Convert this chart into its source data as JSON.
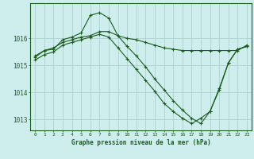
{
  "title": "Graphe pression niveau de la mer (hPa)",
  "background_color": "#ceeeed",
  "grid_color": "#b0cece",
  "line_color": "#1a5c1a",
  "marker_color": "#1a5c1a",
  "xlim": [
    -0.5,
    23.5
  ],
  "ylim": [
    1012.6,
    1017.3
  ],
  "yticks": [
    1013,
    1014,
    1015,
    1016
  ],
  "xticks": [
    0,
    1,
    2,
    3,
    4,
    5,
    6,
    7,
    8,
    9,
    10,
    11,
    12,
    13,
    14,
    15,
    16,
    17,
    18,
    19,
    20,
    21,
    22,
    23
  ],
  "series": [
    [
      1015.3,
      1015.55,
      1015.6,
      1015.95,
      1016.05,
      1016.2,
      1016.85,
      1016.95,
      1016.75,
      1016.1,
      1015.7,
      1015.35,
      1014.95,
      1014.5,
      1014.1,
      1013.7,
      1013.35,
      1013.05,
      1012.85,
      1013.3,
      1014.15,
      1015.1,
      1015.6,
      1015.7
    ],
    [
      1015.35,
      1015.55,
      1015.65,
      1015.85,
      1015.95,
      1016.05,
      1016.1,
      1016.25,
      1016.25,
      1016.1,
      1016.0,
      1015.95,
      1015.85,
      1015.75,
      1015.65,
      1015.6,
      1015.55,
      1015.55,
      1015.55,
      1015.55,
      1015.55,
      1015.55,
      1015.55,
      1015.75
    ],
    [
      1015.2,
      1015.4,
      1015.5,
      1015.75,
      1015.85,
      1015.95,
      1016.05,
      1016.15,
      1016.05,
      1015.65,
      1015.25,
      1014.85,
      1014.45,
      1014.05,
      1013.6,
      1013.3,
      1013.05,
      1012.85,
      1013.05,
      1013.3,
      1014.1,
      1015.1,
      1015.6,
      1015.7
    ]
  ]
}
